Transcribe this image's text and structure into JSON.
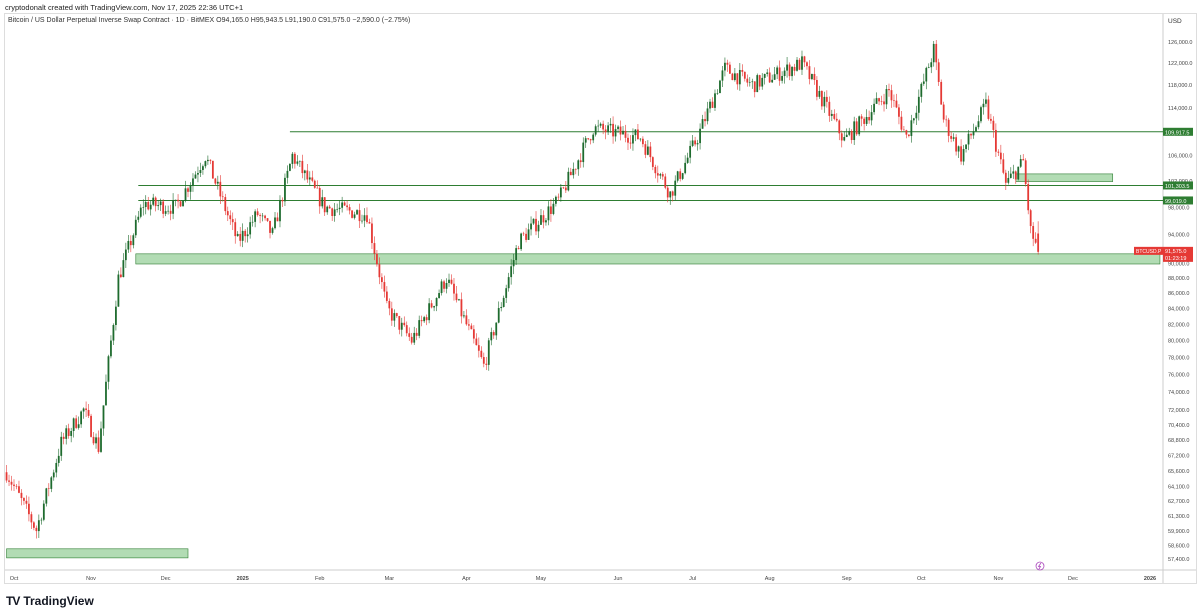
{
  "header": {
    "credit": "cryptodonalt created with TradingView.com, Nov 17, 2025 22:36 UTC+1",
    "symbol": "Bitcoin / US Dollar Perpetual Inverse Swap Contract · 1D · BitMEX  O94,165.0  H95,943.5  L91,190.0  C91,575.0  −2,590.0 (−2.75%)"
  },
  "footer": {
    "logo": "TradingView"
  },
  "colors": {
    "up": "#1e6b2e",
    "down": "#e53935",
    "line": "#2e7d32",
    "zone": "#a5d6a7"
  },
  "chart_data": {
    "type": "candlestick",
    "scale": "log",
    "currency": "USD",
    "ylim": [
      57000,
      127000
    ],
    "y_ticks": [
      "126,000.0",
      "122,000.0",
      "118,000.0",
      "114,000.0",
      "106,000.0",
      "102,000.0",
      "98,000.0",
      "94,000.0",
      "90,000.0",
      "88,000.0",
      "86,000.0",
      "84,000.0",
      "82,000.0",
      "80,000.0",
      "78,000.0",
      "76,000.0",
      "74,000.0",
      "72,000.0",
      "70,400.0",
      "68,800.0",
      "67,200.0",
      "65,600.0",
      "64,100.0",
      "62,700.0",
      "61,300.0",
      "59,900.0",
      "58,600.0",
      "57,400.0"
    ],
    "x_ticks": [
      {
        "label": "Oct",
        "date": "2024-10-01"
      },
      {
        "label": "Nov",
        "date": "2024-11-01"
      },
      {
        "label": "Dec",
        "date": "2024-12-01"
      },
      {
        "label": "2025",
        "date": "2025-01-01",
        "bold": true
      },
      {
        "label": "Feb",
        "date": "2025-02-01"
      },
      {
        "label": "Mar",
        "date": "2025-03-01"
      },
      {
        "label": "Apr",
        "date": "2025-04-01"
      },
      {
        "label": "May",
        "date": "2025-05-01"
      },
      {
        "label": "Jun",
        "date": "2025-06-01"
      },
      {
        "label": "Jul",
        "date": "2025-07-01"
      },
      {
        "label": "Aug",
        "date": "2025-08-01"
      },
      {
        "label": "Sep",
        "date": "2025-09-01"
      },
      {
        "label": "Oct",
        "date": "2025-10-01"
      },
      {
        "label": "Nov",
        "date": "2025-11-01"
      },
      {
        "label": "Dec",
        "date": "2025-12-01"
      },
      {
        "label": "2026",
        "date": "2026-01-01",
        "bold": true
      }
    ],
    "close_anchors": [
      [
        "2024-09-28",
        65500
      ],
      [
        "2024-10-10",
        60000
      ],
      [
        "2024-10-20",
        68500
      ],
      [
        "2024-10-29",
        72000
      ],
      [
        "2024-11-04",
        68000
      ],
      [
        "2024-11-12",
        88000
      ],
      [
        "2024-11-22",
        98500
      ],
      [
        "2024-12-05",
        98000
      ],
      [
        "2024-12-17",
        106000
      ],
      [
        "2024-12-30",
        93000
      ],
      [
        "2025-01-07",
        97000
      ],
      [
        "2025-01-13",
        94000
      ],
      [
        "2025-01-21",
        106000
      ],
      [
        "2025-02-03",
        98000
      ],
      [
        "2025-02-20",
        97000
      ],
      [
        "2025-02-28",
        84000
      ],
      [
        "2025-03-10",
        80000
      ],
      [
        "2025-03-24",
        88000
      ],
      [
        "2025-04-08",
        77000
      ],
      [
        "2025-04-22",
        93000
      ],
      [
        "2025-05-08",
        99000
      ],
      [
        "2025-05-22",
        110500
      ],
      [
        "2025-06-10",
        109000
      ],
      [
        "2025-06-22",
        100000
      ],
      [
        "2025-07-03",
        109000
      ],
      [
        "2025-07-14",
        121000
      ],
      [
        "2025-07-25",
        118000
      ],
      [
        "2025-08-14",
        122000
      ],
      [
        "2025-08-31",
        108500
      ],
      [
        "2025-09-18",
        117000
      ],
      [
        "2025-09-25",
        109000
      ],
      [
        "2025-10-06",
        124500
      ],
      [
        "2025-10-10",
        112000
      ],
      [
        "2025-10-17",
        106000
      ],
      [
        "2025-10-27",
        114500
      ],
      [
        "2025-11-04",
        101500
      ],
      [
        "2025-11-11",
        105000
      ],
      [
        "2025-11-14",
        94500
      ],
      [
        "2025-11-17",
        91575
      ]
    ],
    "last": {
      "open": 94165.0,
      "high": 95943.5,
      "low": 91190.0,
      "close": 91575.0,
      "change": -2590.0,
      "change_pct": -2.75
    },
    "levels": [
      {
        "price": 109917.5,
        "label": "109,917.5",
        "from": "2025-01-20"
      },
      {
        "price": 101303.5,
        "label": "101,303.5",
        "from": "2024-11-20"
      },
      {
        "price": 99019.0,
        "label": "99,019.0",
        "from": "2024-11-20"
      }
    ],
    "zones": [
      {
        "low": 89900,
        "high": 91300,
        "from": "2024-11-19",
        "to": "2026-01-05"
      },
      {
        "low": 101900,
        "high": 103100,
        "from": "2025-11-08",
        "to": "2025-12-17"
      },
      {
        "low": 57500,
        "high": 58300,
        "from": "2024-09-28",
        "to": "2024-12-10"
      }
    ],
    "price_tag": {
      "symbol": "BTCUSD.P",
      "price": "91,575.0",
      "countdown": "01:23:19"
    }
  }
}
